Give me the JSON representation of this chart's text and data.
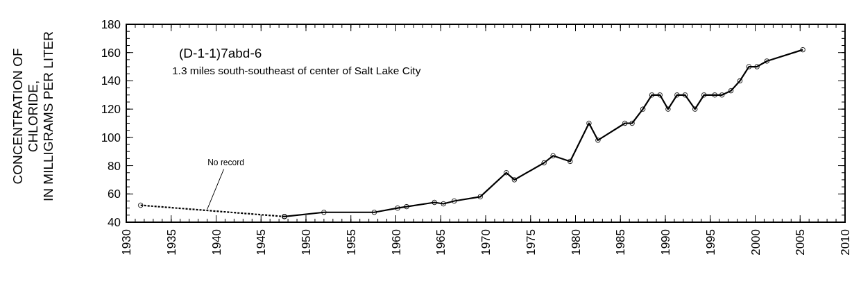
{
  "chart_data": {
    "type": "line",
    "title": "(D-1-1)7abd-6",
    "subtitle": "1.3 miles south-southeast of center of Salt Lake City",
    "ylabel": "CONCENTRATION OF\nCHLORIDE,\nIN MILLIGRAMS PER LITER",
    "series": [
      {
        "color": "#000000",
        "line_style": "dotted",
        "x": [
          1931.6,
          1947.6
        ],
        "values": [
          52,
          44
        ]
      },
      {
        "color": "#000000",
        "line_style": "solid",
        "x": [
          1947.6,
          1952,
          1957.6,
          1960.2,
          1961.2,
          1964.3,
          1965.3,
          1966.5,
          1969.4,
          1972.3,
          1973.2,
          1976.5,
          1977.5,
          1979.4,
          1981.5,
          1982.5,
          1985.5,
          1986.3,
          1987.5,
          1988.5,
          1989.4,
          1990.3,
          1991.3,
          1992.2,
          1993.3,
          1994.3,
          1995.5,
          1996.3,
          1997.3,
          1998.3,
          1999.3,
          2000.2,
          2001.3,
          2005.3
        ],
        "values": [
          44,
          47,
          47,
          50,
          51,
          54,
          53,
          55,
          58,
          75,
          70,
          82,
          87,
          83,
          110,
          98,
          110,
          110,
          120,
          130,
          130,
          120,
          130,
          130,
          120,
          130,
          130,
          130,
          133,
          140,
          150,
          150,
          154,
          162
        ]
      }
    ],
    "annotations": [
      {
        "text": "No record",
        "x": 1939,
        "y": 49
      }
    ],
    "xlim": [
      1930,
      2010
    ],
    "xticks": [
      1930,
      1935,
      1940,
      1945,
      1950,
      1955,
      1960,
      1965,
      1970,
      1975,
      1980,
      1985,
      1990,
      1995,
      2000,
      2005,
      2010
    ],
    "ylim": [
      40,
      180
    ],
    "yticks": [
      40,
      60,
      80,
      100,
      120,
      140,
      160,
      180
    ],
    "marker": "circle",
    "grid": false
  }
}
